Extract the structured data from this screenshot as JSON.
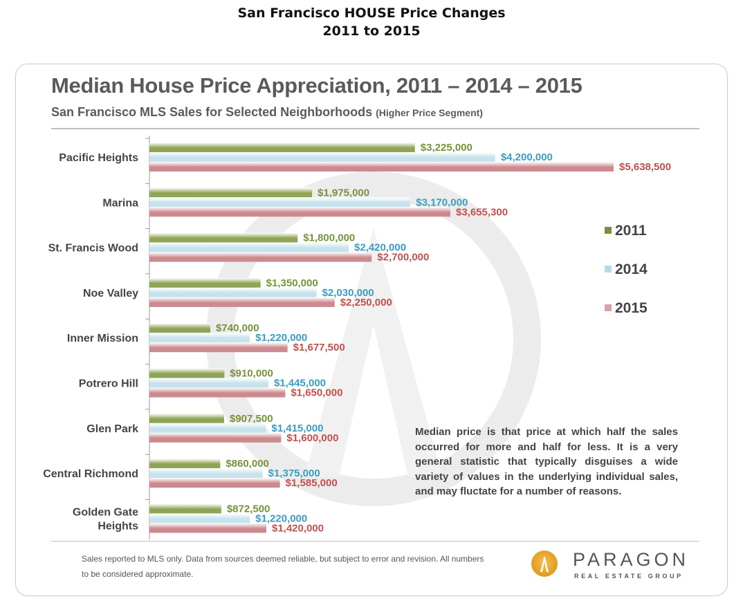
{
  "page": {
    "title_line1": "San Francisco HOUSE Price Changes",
    "title_line2": "2011 to 2015"
  },
  "chart_data": {
    "type": "bar",
    "orientation": "horizontal",
    "title": "Median House Price Appreciation, 2011 – 2014 – 2015",
    "subtitle": "San Francisco MLS Sales for Selected Neighborhoods",
    "subtitle_note": "(Higher Price Segment)",
    "categories": [
      "Pacific Heights",
      "Marina",
      "St. Francis Wood",
      "Noe Valley",
      "Inner Mission",
      "Potrero Hill",
      "Glen Park",
      "Central Richmond",
      "Golden Gate Heights"
    ],
    "series": [
      {
        "name": "2011",
        "color": "#8fa455",
        "label_color": "#76923c",
        "values": [
          3225000,
          1975000,
          1800000,
          1350000,
          740000,
          910000,
          907500,
          860000,
          872500
        ],
        "labels": [
          "$3,225,000",
          "$1,975,000",
          "$1,800,000",
          "$1,350,000",
          "$740,000",
          "$910,000",
          "$907,500",
          "$860,000",
          "$872,500"
        ]
      },
      {
        "name": "2014",
        "color": "#c6e3ec",
        "label_color": "#3a9cc0",
        "values": [
          4200000,
          3170000,
          2420000,
          2030000,
          1220000,
          1445000,
          1415000,
          1375000,
          1220000
        ],
        "labels": [
          "$4,200,000",
          "$3,170,000",
          "$2,420,000",
          "$2,030,000",
          "$1,220,000",
          "$1,445,000",
          "$1,415,000",
          "$1,375,000",
          "$1,220,000"
        ]
      },
      {
        "name": "2015",
        "color": "#cc8a8f",
        "label_color": "#c0504d",
        "values": [
          5638500,
          3655300,
          2700000,
          2250000,
          1677500,
          1650000,
          1600000,
          1585000,
          1420000
        ],
        "labels": [
          "$5,638,500",
          "$3,655,300",
          "$2,700,000",
          "$2,250,000",
          "$1,677,500",
          "$1,650,000",
          "$1,600,000",
          "$1,585,000",
          "$1,420,000"
        ]
      }
    ],
    "xlim": [
      0,
      5638500
    ],
    "grid": false,
    "legend": "right"
  },
  "note_text": "Median price is that price at which half the sales occurred for more and half for less.  It is a very general statistic that typically disguises a wide variety of values in the underlying individual sales, and may fluctate for a number of reasons.",
  "footnote_text": "Sales reported to MLS only. Data from sources deemed reliable, but subject to error and revision.  All numbers  to be considered approximate.",
  "logo": {
    "name": "PARAGON",
    "tagline": "REAL ESTATE GROUP",
    "color": "#e9a127"
  }
}
